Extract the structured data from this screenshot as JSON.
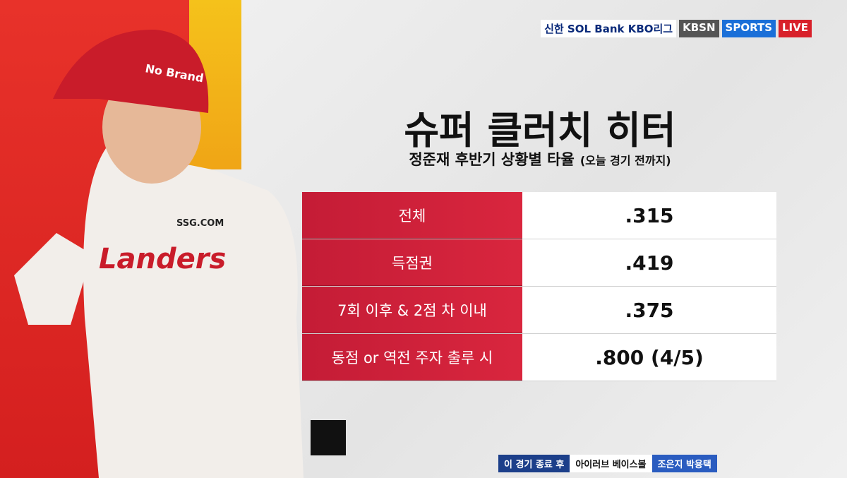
{
  "broadcast": {
    "league_logo": "신한 SOL Bank KBO리그",
    "network": "KBSN",
    "channel": "SPORTS",
    "live": "LIVE"
  },
  "header": {
    "title": "슈퍼 클러치 히터",
    "subtitle": "정준재 후반기 상황별 타율",
    "note": "(오늘 경기 전까지)"
  },
  "table": {
    "rows": [
      [
        "전체",
        ".315"
      ],
      [
        "득점권",
        ".419"
      ],
      [
        "7회 이후 & 2점 차 이내",
        ".375"
      ],
      [
        "동점 or 역전 주자 출루 시",
        ".800 (4/5)"
      ]
    ]
  },
  "photo": {
    "helmet": "No Brand",
    "sponsor": "SSG.COM",
    "team": "Landers"
  },
  "footer": {
    "when": "이 경기 종료 후",
    "program": "아이러브 베이스볼",
    "hosts": "조은지 박용택"
  }
}
